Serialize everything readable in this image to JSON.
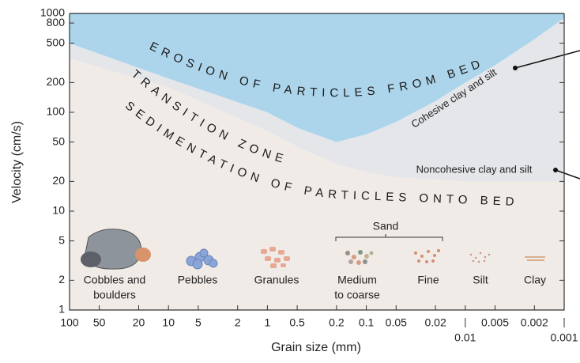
{
  "chart_data": {
    "type": "area",
    "xlabel": "Grain size (mm)",
    "ylabel": "Velocity (cm/s)",
    "xscale": "log",
    "yscale": "log",
    "xlim": [
      100,
      0.001
    ],
    "ylim": [
      1,
      1000
    ],
    "xticks": [
      100,
      50,
      20,
      10,
      5,
      2,
      1,
      0.5,
      0.2,
      0.1,
      0.05,
      0.02,
      0.01,
      0.005,
      0.002,
      0.001
    ],
    "yticks": [
      1,
      2,
      5,
      10,
      20,
      50,
      100,
      200,
      500,
      800,
      1000
    ],
    "x": [
      100,
      10,
      1,
      0.5,
      0.2,
      0.1,
      0.05,
      0.02,
      0.01,
      0.005,
      0.002,
      0.001
    ],
    "series": [
      {
        "color": "#e4e6ea",
        "values": [
          350,
          180,
          65,
          45,
          30,
          25,
          22,
          21,
          20,
          20,
          20,
          20
        ]
      },
      {
        "color": "#acd5ec",
        "values": [
          500,
          220,
          100,
          70,
          50,
          60,
          80,
          130,
          200,
          300,
          550,
          900
        ]
      }
    ],
    "zone_labels": [
      "EROSION OF PARTICLES FROM BED",
      "TRANSITION ZONE",
      "SEDIMENTATION OF PARTICLES ONTO BED"
    ],
    "curve_labels": [
      "Cohesive clay and silt",
      "Noncohesive clay and silt"
    ],
    "sand_label": "Sand",
    "grain_labels": [
      [
        "Cobbles and",
        "boulders"
      ],
      [
        "Pebbles"
      ],
      [
        "Granules"
      ],
      [
        "Medium",
        "to coarse"
      ],
      [
        "Fine"
      ],
      [
        "Silt"
      ],
      [
        "Clay"
      ]
    ]
  }
}
